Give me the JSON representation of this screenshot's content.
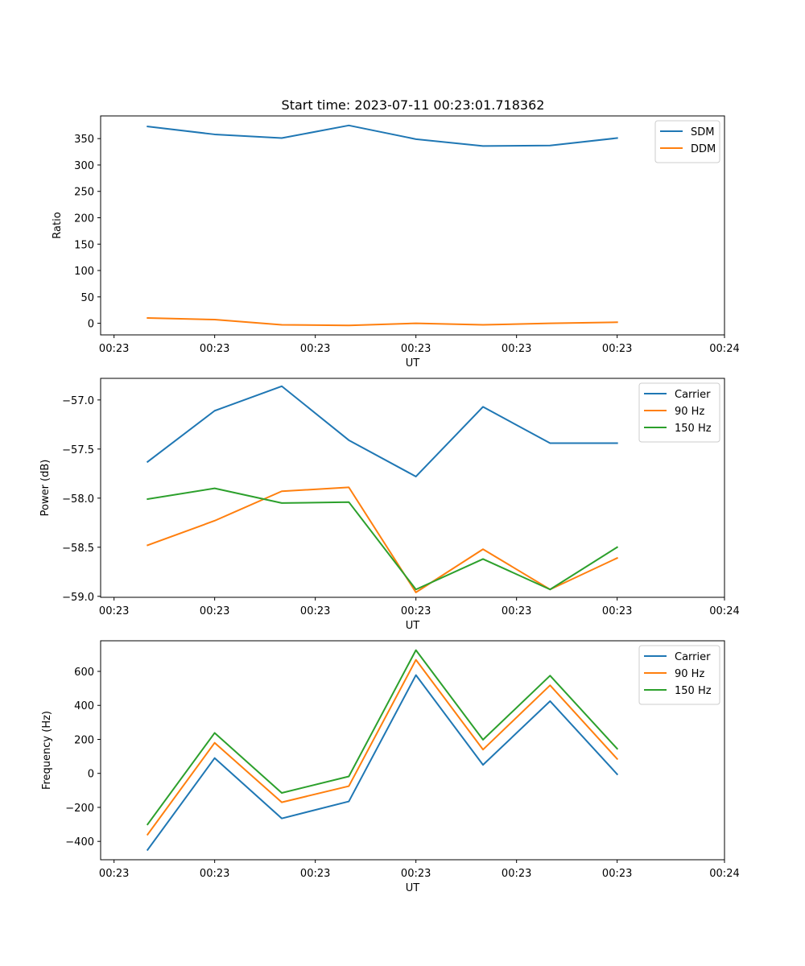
{
  "figure_title": "Start time: 2023-07-11 00:23:01.718362",
  "chart_data": [
    {
      "type": "line",
      "title": "Start time: 2023-07-11 00:23:01.718362",
      "xlabel": "UT",
      "ylabel": "Ratio",
      "x_tick_labels": [
        "00:23",
        "00:23",
        "00:23",
        "00:23",
        "00:23",
        "00:23",
        "00:24"
      ],
      "x_tick_values": [
        -0.5,
        1,
        2.5,
        4,
        5.5,
        7,
        8.6
      ],
      "xlim": [
        -0.7,
        8.6
      ],
      "ylim": [
        -22,
        393
      ],
      "y_ticks": [
        0,
        50,
        100,
        150,
        200,
        250,
        300,
        350
      ],
      "y_tick_labels": [
        "0",
        "50",
        "100",
        "150",
        "200",
        "250",
        "300",
        "350"
      ],
      "legend_loc": "top-right",
      "x": [
        0,
        1,
        2,
        3,
        4,
        5,
        6,
        7
      ],
      "series": [
        {
          "name": "SDM",
          "color": "#1f77b4",
          "values": [
            373,
            358,
            351,
            375,
            349,
            336,
            337,
            351
          ]
        },
        {
          "name": "DDM",
          "color": "#ff7f0e",
          "values": [
            10,
            7,
            -3,
            -4,
            0,
            -3,
            0,
            2
          ]
        }
      ]
    },
    {
      "type": "line",
      "title": "",
      "xlabel": "UT",
      "ylabel": "Power (dB)",
      "x_tick_labels": [
        "00:23",
        "00:23",
        "00:23",
        "00:23",
        "00:23",
        "00:23",
        "00:24"
      ],
      "x_tick_values": [
        -0.5,
        1,
        2.5,
        4,
        5.5,
        7,
        8.6
      ],
      "xlim": [
        -0.7,
        8.6
      ],
      "ylim": [
        -59.01,
        -56.78
      ],
      "y_ticks": [
        -59.0,
        -58.5,
        -58.0,
        -57.5,
        -57.0
      ],
      "y_tick_labels": [
        "−59.0",
        "−58.5",
        "−58.0",
        "−57.5",
        "−57.0"
      ],
      "legend_loc": "top-right",
      "x": [
        0,
        1,
        2,
        3,
        4,
        5,
        6,
        7
      ],
      "series": [
        {
          "name": "Carrier",
          "color": "#1f77b4",
          "values": [
            -57.63,
            -57.11,
            -56.86,
            -57.41,
            -57.78,
            -57.07,
            -57.44,
            -57.44
          ]
        },
        {
          "name": "90 Hz",
          "color": "#ff7f0e",
          "values": [
            -58.48,
            -58.23,
            -57.93,
            -57.89,
            -58.96,
            -58.52,
            -58.93,
            -58.61
          ]
        },
        {
          "name": "150 Hz",
          "color": "#2ca02c",
          "values": [
            -58.01,
            -57.9,
            -58.05,
            -58.04,
            -58.93,
            -58.62,
            -58.93,
            -58.5
          ]
        }
      ]
    },
    {
      "type": "line",
      "title": "",
      "xlabel": "UT",
      "ylabel": "Frequency (Hz)",
      "x_tick_labels": [
        "00:23",
        "00:23",
        "00:23",
        "00:23",
        "00:23",
        "00:23",
        "00:24"
      ],
      "x_tick_values": [
        -0.5,
        1,
        2.5,
        4,
        5.5,
        7,
        8.6
      ],
      "xlim": [
        -0.7,
        8.6
      ],
      "ylim": [
        -508,
        780
      ],
      "y_ticks": [
        -400,
        -200,
        0,
        200,
        400,
        600
      ],
      "y_tick_labels": [
        "−400",
        "−200",
        "0",
        "200",
        "400",
        "600"
      ],
      "legend_loc": "top-right",
      "x": [
        0,
        1,
        2,
        3,
        4,
        5,
        6,
        7
      ],
      "series": [
        {
          "name": "Carrier",
          "color": "#1f77b4",
          "values": [
            -450,
            90,
            -265,
            -165,
            578,
            50,
            425,
            -5
          ]
        },
        {
          "name": "90 Hz",
          "color": "#ff7f0e",
          "values": [
            -360,
            180,
            -170,
            -75,
            668,
            140,
            518,
            85
          ]
        },
        {
          "name": "150 Hz",
          "color": "#2ca02c",
          "values": [
            -300,
            238,
            -115,
            -18,
            725,
            198,
            575,
            145
          ]
        }
      ]
    }
  ]
}
